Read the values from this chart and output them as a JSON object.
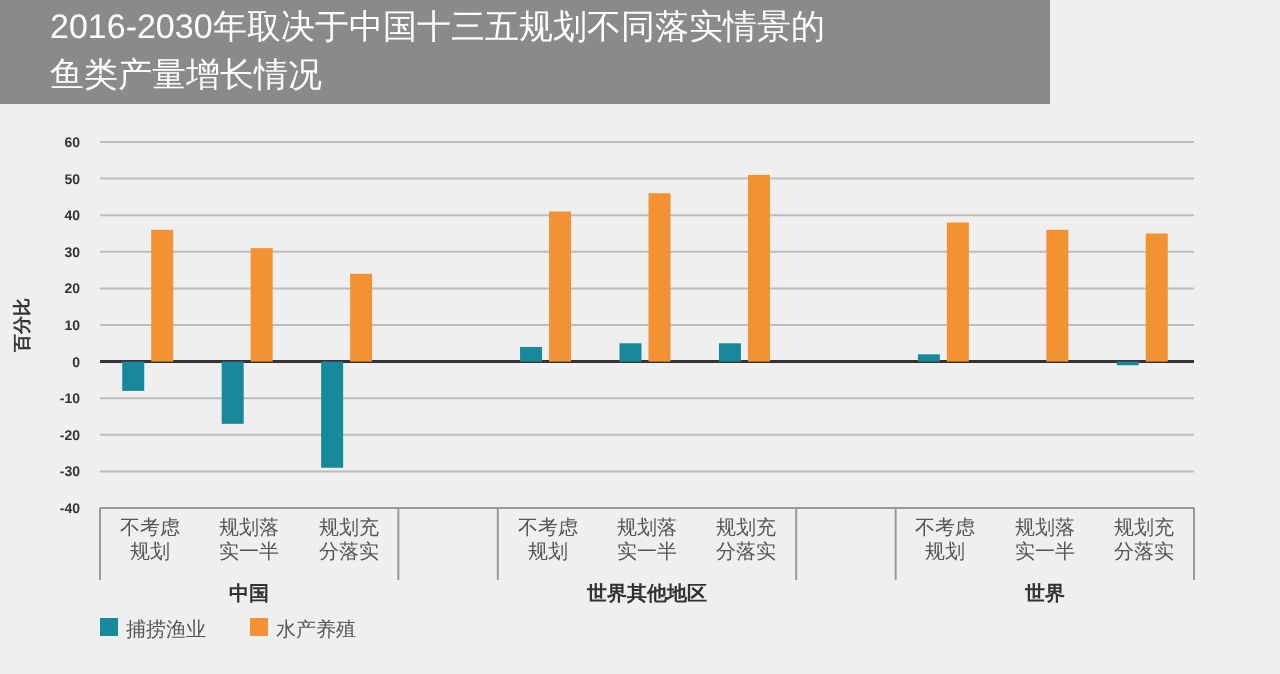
{
  "chart_data": {
    "type": "bar",
    "title": "2016-2030年取决于中国十三五规划不同落实情景的鱼类产量增长情况",
    "ylabel": "百分比",
    "categories": [
      "不考虑规划",
      "规划落实一半",
      "规划充分落实",
      null,
      "不考虑规划",
      "规划落实一半",
      "规划充分落实",
      null,
      "不考虑规划",
      "规划落实一半",
      "规划充分落实"
    ],
    "series": [
      {
        "name": "捕捞渔业",
        "color": "#17899b",
        "values": [
          -8,
          -17,
          -29,
          null,
          4,
          5,
          5,
          null,
          2,
          0,
          -1
        ]
      },
      {
        "name": "水产养殖",
        "color": "#f39232",
        "values": [
          36,
          31,
          24,
          null,
          41,
          46,
          51,
          null,
          38,
          36,
          35
        ]
      }
    ],
    "annotations": [
      "中国",
      "世界其他地区",
      "世界"
    ],
    "ylim": [
      -40,
      60
    ],
    "yticks": [
      -40,
      -30,
      -20,
      -10,
      0,
      10,
      20,
      30,
      40,
      50,
      60
    ],
    "grid": "y",
    "legend": "bottom left"
  }
}
